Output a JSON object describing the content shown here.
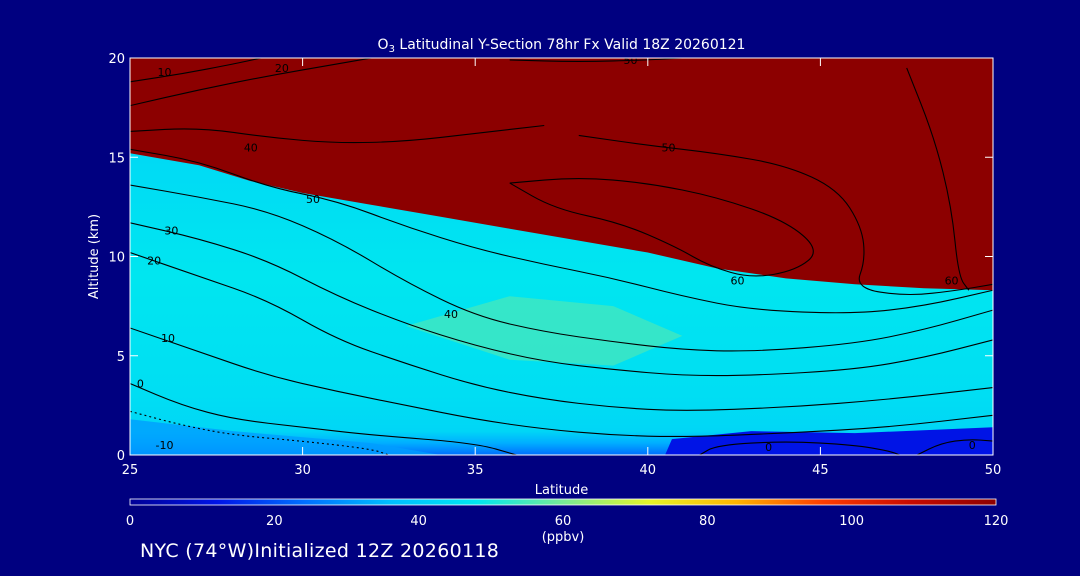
{
  "chart_data": {
    "type": "heatmap",
    "title_prefix": "O",
    "title_sub": "3",
    "title_rest": " Latitudinal Y-Section 78hr  Fx Valid 18Z 20260121",
    "xlabel": "Latitude",
    "ylabel": "Altitude (km)",
    "xlim": [
      25,
      50
    ],
    "ylim": [
      0,
      20
    ],
    "x_ticks": [
      "25",
      "30",
      "35",
      "40",
      "45",
      "50"
    ],
    "y_ticks": [
      "0",
      "5",
      "10",
      "15",
      "20"
    ],
    "colorbar": {
      "range": [
        0,
        120
      ],
      "ticks": [
        "0",
        "20",
        "40",
        "60",
        "80",
        "100",
        "120"
      ],
      "unit": "(ppbv)"
    },
    "contours": [
      {
        "level": -10,
        "label": "-10",
        "style": "dotted",
        "label_pos": [
          26.0,
          0.5
        ],
        "points": [
          [
            25,
            2.2
          ],
          [
            26.5,
            1.5
          ],
          [
            28,
            1.0
          ],
          [
            30,
            0.7
          ],
          [
            32,
            0.3
          ],
          [
            32.5,
            0
          ]
        ]
      },
      {
        "level": 0,
        "label": "0",
        "style": "solid",
        "label_pos": [
          25.3,
          3.6
        ],
        "points": [
          [
            25,
            3.6
          ],
          [
            26.5,
            2.5
          ],
          [
            28,
            1.8
          ],
          [
            30,
            1.4
          ],
          [
            32,
            1.0
          ],
          [
            35,
            0.6
          ],
          [
            36.2,
            0
          ]
        ]
      },
      {
        "level": 0,
        "label": "0",
        "style": "solid",
        "label_pos": [
          43.5,
          0.4
        ],
        "points": [
          [
            41.5,
            0
          ],
          [
            42,
            0.5
          ],
          [
            44,
            0.7
          ],
          [
            46,
            0.5
          ],
          [
            47,
            0.2
          ],
          [
            47.3,
            0
          ]
        ]
      },
      {
        "level": 0,
        "label": "0",
        "style": "solid",
        "label_pos": [
          49.4,
          0.5
        ],
        "points": [
          [
            47.8,
            0
          ],
          [
            48.5,
            0.6
          ],
          [
            49.3,
            0.8
          ],
          [
            50,
            0.7
          ]
        ]
      },
      {
        "level": 10,
        "label": "10",
        "style": "solid",
        "label_pos": [
          26.1,
          5.9
        ],
        "points": [
          [
            25,
            6.4
          ],
          [
            27,
            5.2
          ],
          [
            29,
            4.0
          ],
          [
            31,
            3.2
          ],
          [
            33,
            2.5
          ],
          [
            35,
            1.8
          ],
          [
            37,
            1.3
          ],
          [
            39,
            1.0
          ],
          [
            41,
            0.9
          ],
          [
            44,
            1.1
          ],
          [
            47,
            1.4
          ],
          [
            50,
            2.0
          ]
        ]
      },
      {
        "level": 20,
        "label": "20",
        "style": "solid",
        "label_pos": [
          25.7,
          9.8
        ],
        "points": [
          [
            25,
            10.2
          ],
          [
            27,
            9.0
          ],
          [
            29,
            7.8
          ],
          [
            31,
            5.8
          ],
          [
            33,
            4.6
          ],
          [
            35,
            3.5
          ],
          [
            37,
            2.8
          ],
          [
            39,
            2.4
          ],
          [
            41,
            2.2
          ],
          [
            44,
            2.4
          ],
          [
            47,
            2.8
          ],
          [
            50,
            3.4
          ]
        ]
      },
      {
        "level": 30,
        "label": "30",
        "style": "solid",
        "label_pos": [
          26.2,
          11.3
        ],
        "points": [
          [
            25,
            11.7
          ],
          [
            27,
            10.9
          ],
          [
            29,
            9.8
          ],
          [
            31,
            8.0
          ],
          [
            33,
            6.6
          ],
          [
            35,
            5.5
          ],
          [
            37,
            4.7
          ],
          [
            39,
            4.3
          ],
          [
            41,
            4.0
          ],
          [
            43,
            4.0
          ],
          [
            46,
            4.3
          ],
          [
            48,
            4.9
          ],
          [
            50,
            5.8
          ]
        ]
      },
      {
        "level": 40,
        "label": "40",
        "style": "solid",
        "label_pos": [
          34.3,
          7.1
        ],
        "points": [
          [
            25,
            13.6
          ],
          [
            27,
            13.0
          ],
          [
            29,
            12.3
          ],
          [
            31,
            10.8
          ],
          [
            33,
            8.7
          ],
          [
            35,
            7.0
          ],
          [
            37,
            6.2
          ],
          [
            39,
            5.7
          ],
          [
            41,
            5.3
          ],
          [
            43,
            5.2
          ],
          [
            46,
            5.6
          ],
          [
            48,
            6.3
          ],
          [
            50,
            7.3
          ]
        ]
      },
      {
        "level": 50,
        "label": "50",
        "style": "solid",
        "label_pos": [
          30.3,
          12.9
        ],
        "points": [
          [
            25,
            15.4
          ],
          [
            27,
            14.8
          ],
          [
            29,
            13.5
          ],
          [
            31,
            12.8
          ],
          [
            33,
            11.5
          ],
          [
            35,
            10.4
          ],
          [
            37,
            9.6
          ],
          [
            39,
            8.9
          ],
          [
            41,
            8.0
          ],
          [
            43,
            7.3
          ],
          [
            46,
            7.1
          ],
          [
            48,
            7.5
          ],
          [
            50,
            8.3
          ]
        ]
      },
      {
        "level": 60,
        "label": "60",
        "style": "solid",
        "label_pos": [
          42.6,
          8.8
        ],
        "points": [
          [
            36,
            13.7
          ],
          [
            38,
            14.0
          ],
          [
            40,
            13.7
          ],
          [
            42,
            13.0
          ],
          [
            44,
            11.8
          ],
          [
            45,
            10.3
          ],
          [
            44.3,
            9.3
          ],
          [
            43,
            8.9
          ],
          [
            41.8,
            9.5
          ],
          [
            40.8,
            10.5
          ],
          [
            39.2,
            11.7
          ],
          [
            37.3,
            12.4
          ],
          [
            36,
            13.7
          ]
        ]
      },
      {
        "level": 40,
        "label": "40",
        "style": "solid",
        "label_pos": [
          28.5,
          15.5
        ],
        "points": [
          [
            25,
            16.3
          ],
          [
            27,
            16.5
          ],
          [
            29,
            16.0
          ],
          [
            31,
            15.7
          ],
          [
            33,
            15.8
          ],
          [
            35,
            16.2
          ],
          [
            37,
            16.6
          ]
        ]
      },
      {
        "level": 50,
        "label": "50",
        "style": "solid",
        "label_pos": [
          40.6,
          15.5
        ],
        "points": [
          [
            38,
            16.1
          ],
          [
            40,
            15.6
          ],
          [
            42,
            15.2
          ],
          [
            44,
            14.6
          ],
          [
            45.5,
            13.4
          ],
          [
            46.2,
            11.5
          ],
          [
            46.3,
            9.8
          ],
          [
            46,
            8.4
          ],
          [
            47.5,
            8.0
          ],
          [
            49,
            8.3
          ],
          [
            50,
            8.6
          ]
        ]
      },
      {
        "level": 20,
        "label": "20",
        "style": "solid",
        "label_pos": [
          29.4,
          19.5
        ],
        "points": [
          [
            25,
            17.6
          ],
          [
            27,
            18.4
          ],
          [
            29,
            19.1
          ],
          [
            31,
            19.7
          ],
          [
            32,
            20
          ]
        ]
      },
      {
        "level": 10,
        "label": "10",
        "style": "solid",
        "label_pos": [
          26.0,
          19.3
        ],
        "points": [
          [
            25,
            18.8
          ],
          [
            26.5,
            19.2
          ],
          [
            28,
            19.7
          ],
          [
            28.8,
            20
          ]
        ]
      },
      {
        "level": 50,
        "label": "50",
        "style": "solid",
        "label_pos": [
          39.5,
          19.9
        ],
        "points": [
          [
            36,
            19.9
          ],
          [
            38,
            19.8
          ],
          [
            40,
            19.9
          ],
          [
            41,
            20
          ]
        ]
      },
      {
        "level": 60,
        "label": "60",
        "style": "solid",
        "label_pos": [
          48.8,
          8.8
        ],
        "points": [
          [
            47.5,
            19.5
          ],
          [
            48.3,
            16.0
          ],
          [
            48.8,
            12.5
          ],
          [
            49.0,
            9.0
          ],
          [
            49.3,
            8.3
          ]
        ]
      }
    ]
  },
  "footer": "NYC (74°W)Initialized 12Z 20260118"
}
